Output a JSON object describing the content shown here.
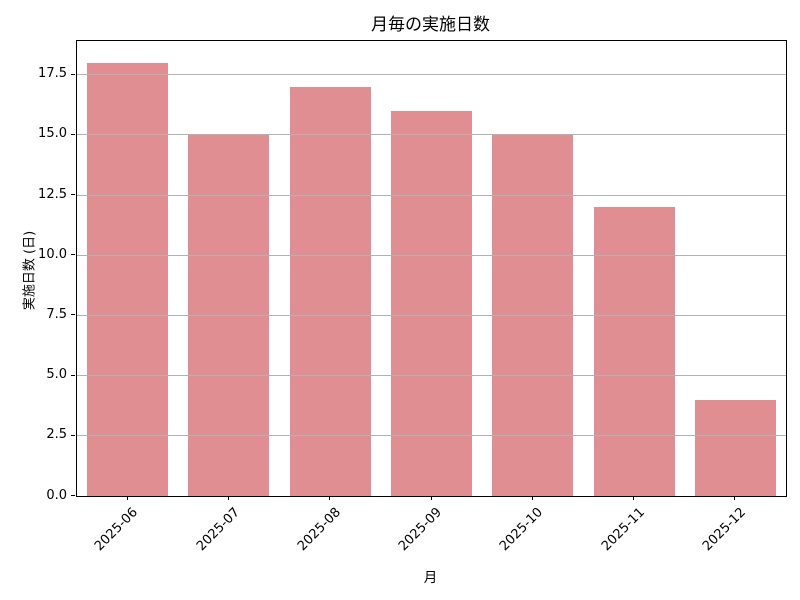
{
  "chart_data": {
    "type": "bar",
    "title": "月毎の実施日数",
    "xlabel": "月",
    "ylabel": "実施日数 (日)",
    "categories": [
      "2025-06",
      "2025-07",
      "2025-08",
      "2025-09",
      "2025-10",
      "2025-11",
      "2025-12"
    ],
    "values": [
      18,
      15,
      17,
      16,
      15,
      12,
      4
    ],
    "ylim": [
      0,
      18.9
    ],
    "yticks": [
      0.0,
      2.5,
      5.0,
      7.5,
      10.0,
      12.5,
      15.0,
      17.5
    ],
    "ytick_labels": [
      "0.0",
      "2.5",
      "5.0",
      "7.5",
      "10.0",
      "12.5",
      "15.0",
      "17.5"
    ],
    "grid": "horizontal-on",
    "grid_above_bars": true,
    "legend_position": "none",
    "bar_color": "#e08e92",
    "grid_color": "#b2b2b2",
    "axis_color": "#000000",
    "text_color": "#000000",
    "bar_width_fraction": 0.8
  }
}
